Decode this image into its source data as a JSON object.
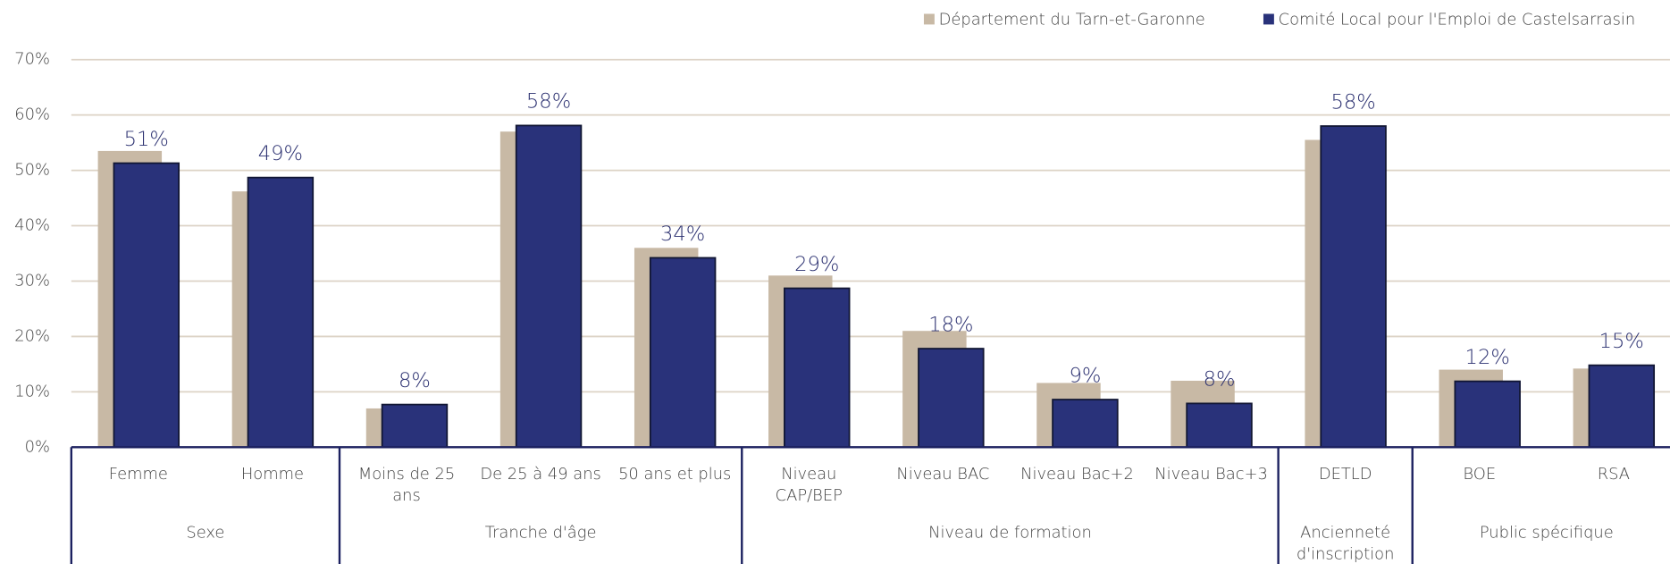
{
  "chart_data": {
    "type": "bar",
    "groups": [
      {
        "name": "Sexe",
        "categories": [
          "Femme",
          "Homme"
        ]
      },
      {
        "name": "Tranche d'âge",
        "categories": [
          "Moins de 25 ans",
          "De 25 à 49 ans",
          "50 ans et plus"
        ]
      },
      {
        "name": "Niveau de formation",
        "categories": [
          "Niveau CAP/BEP",
          "Niveau BAC",
          "Niveau Bac+2",
          "Niveau Bac+3"
        ]
      },
      {
        "name": "Ancienneté d'inscription",
        "categories": [
          "DETLD"
        ]
      },
      {
        "name": "Public spécifique",
        "categories": [
          "BOE",
          "RSA"
        ]
      }
    ],
    "series": [
      {
        "name": "Département du Tarn-et-Garonne",
        "color": "#c8b9a5",
        "values": [
          53.5,
          46.2,
          7,
          57,
          36,
          31,
          21,
          11.6,
          12,
          55.5,
          14,
          14.2
        ]
      },
      {
        "name": "Comité Local pour l'Emploi de Castelsarrasin",
        "color": "#29327a",
        "values": [
          51.3,
          48.7,
          7.7,
          58.1,
          34.2,
          28.7,
          17.8,
          8.6,
          7.9,
          58,
          11.9,
          14.8
        ],
        "value_labels": [
          "51%",
          "49%",
          "8%",
          "58%",
          "34%",
          "29%",
          "18%",
          "9%",
          "8%",
          "58%",
          "12%",
          "15%"
        ]
      }
    ],
    "ylim": [
      0,
      70
    ],
    "yticks": [
      {
        "value": 0,
        "label": "0%"
      },
      {
        "value": 10,
        "label": "10%"
      },
      {
        "value": 20,
        "label": "20%"
      },
      {
        "value": 30,
        "label": "30%"
      },
      {
        "value": 40,
        "label": "40%"
      },
      {
        "value": 50,
        "label": "50%"
      },
      {
        "value": 60,
        "label": "60%"
      },
      {
        "value": 70,
        "label": "70%"
      }
    ],
    "grid": true,
    "legend": "top-right"
  }
}
